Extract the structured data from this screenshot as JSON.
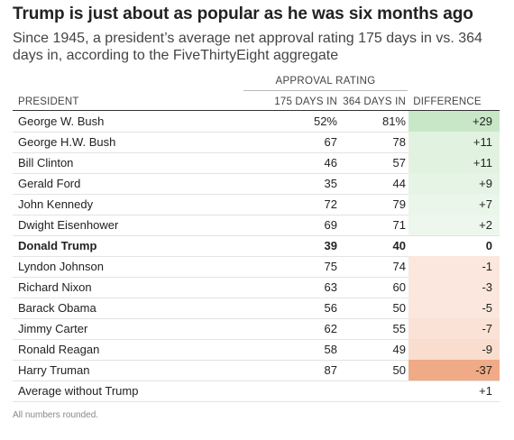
{
  "title": "Trump is just about as popular as he was six months ago",
  "subtitle": "Since 1945, a president’s average net approval rating 175 days in vs. 364 days in, according to the FiveThirtyEight aggregate",
  "note": "All numbers rounded.",
  "colors": {
    "positive_max": "#bfe3bd",
    "negative_max": "#f0aa85",
    "text": "#222222"
  },
  "chart_data": {
    "type": "table",
    "group_header": "APPROVAL RATING",
    "columns": [
      "PRESIDENT",
      "175 DAYS IN",
      "364 DAYS IN",
      "DIFFERENCE"
    ],
    "rows": [
      {
        "president": "George W. Bush",
        "d175": "52%",
        "d364": "81%",
        "diff": "+29",
        "diff_value": 29
      },
      {
        "president": "George H.W. Bush",
        "d175": "67",
        "d364": "78",
        "diff": "+11",
        "diff_value": 11
      },
      {
        "president": "Bill Clinton",
        "d175": "46",
        "d364": "57",
        "diff": "+11",
        "diff_value": 11
      },
      {
        "president": "Gerald Ford",
        "d175": "35",
        "d364": "44",
        "diff": "+9",
        "diff_value": 9
      },
      {
        "president": "John Kennedy",
        "d175": "72",
        "d364": "79",
        "diff": "+7",
        "diff_value": 7
      },
      {
        "president": "Dwight Eisenhower",
        "d175": "69",
        "d364": "71",
        "diff": "+2",
        "diff_value": 2
      },
      {
        "president": "Donald Trump",
        "d175": "39",
        "d364": "40",
        "diff": "0",
        "diff_value": 0,
        "bold": true
      },
      {
        "president": "Lyndon Johnson",
        "d175": "75",
        "d364": "74",
        "diff": "-1",
        "diff_value": -1
      },
      {
        "president": "Richard Nixon",
        "d175": "63",
        "d364": "60",
        "diff": "-3",
        "diff_value": -3
      },
      {
        "president": "Barack Obama",
        "d175": "56",
        "d364": "50",
        "diff": "-5",
        "diff_value": -5
      },
      {
        "president": "Jimmy Carter",
        "d175": "62",
        "d364": "55",
        "diff": "-7",
        "diff_value": -7
      },
      {
        "president": "Ronald Reagan",
        "d175": "58",
        "d364": "49",
        "diff": "-9",
        "diff_value": -9
      },
      {
        "president": "Harry Truman",
        "d175": "87",
        "d364": "50",
        "diff": "-37",
        "diff_value": -37
      }
    ],
    "average_row": {
      "label": "Average without Trump",
      "diff": "+1"
    }
  }
}
